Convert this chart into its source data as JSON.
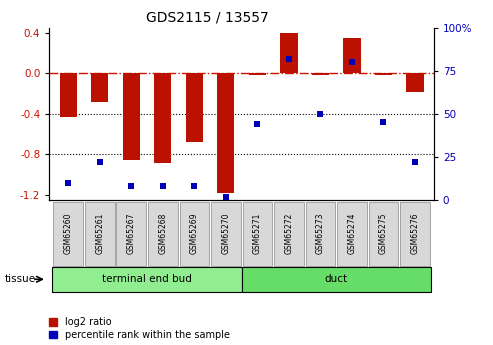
{
  "title": "GDS2115 / 13557",
  "samples": [
    "GSM65260",
    "GSM65261",
    "GSM65267",
    "GSM65268",
    "GSM65269",
    "GSM65270",
    "GSM65271",
    "GSM65272",
    "GSM65273",
    "GSM65274",
    "GSM65275",
    "GSM65276"
  ],
  "log2_ratio": [
    -0.43,
    -0.28,
    -0.85,
    -0.88,
    -0.68,
    -1.18,
    -0.02,
    0.4,
    -0.02,
    0.35,
    -0.02,
    -0.18
  ],
  "percentile_rank": [
    10,
    22,
    8,
    8,
    8,
    2,
    44,
    82,
    50,
    80,
    45,
    22
  ],
  "groups": [
    {
      "label": "terminal end bud",
      "start": 0,
      "end": 6,
      "color": "#90ee90"
    },
    {
      "label": "duct",
      "start": 6,
      "end": 12,
      "color": "#66dd66"
    }
  ],
  "ylim_left": [
    -1.25,
    0.45
  ],
  "ylim_right": [
    0,
    100
  ],
  "yticks_left": [
    0.4,
    0.0,
    -0.4,
    -0.8,
    -1.2
  ],
  "yticks_right": [
    100,
    75,
    50,
    25,
    0
  ],
  "bar_color": "#bb1100",
  "dot_color": "#0000bb",
  "hline_color": "#cc1100",
  "dotline1": -0.4,
  "dotline2": -0.8,
  "legend_red_label": "log2 ratio",
  "legend_blue_label": "percentile rank within the sample",
  "tissue_label": "tissue",
  "bar_width": 0.55,
  "sample_box_color": "#d8d8d8",
  "sample_box_edge": "#888888"
}
